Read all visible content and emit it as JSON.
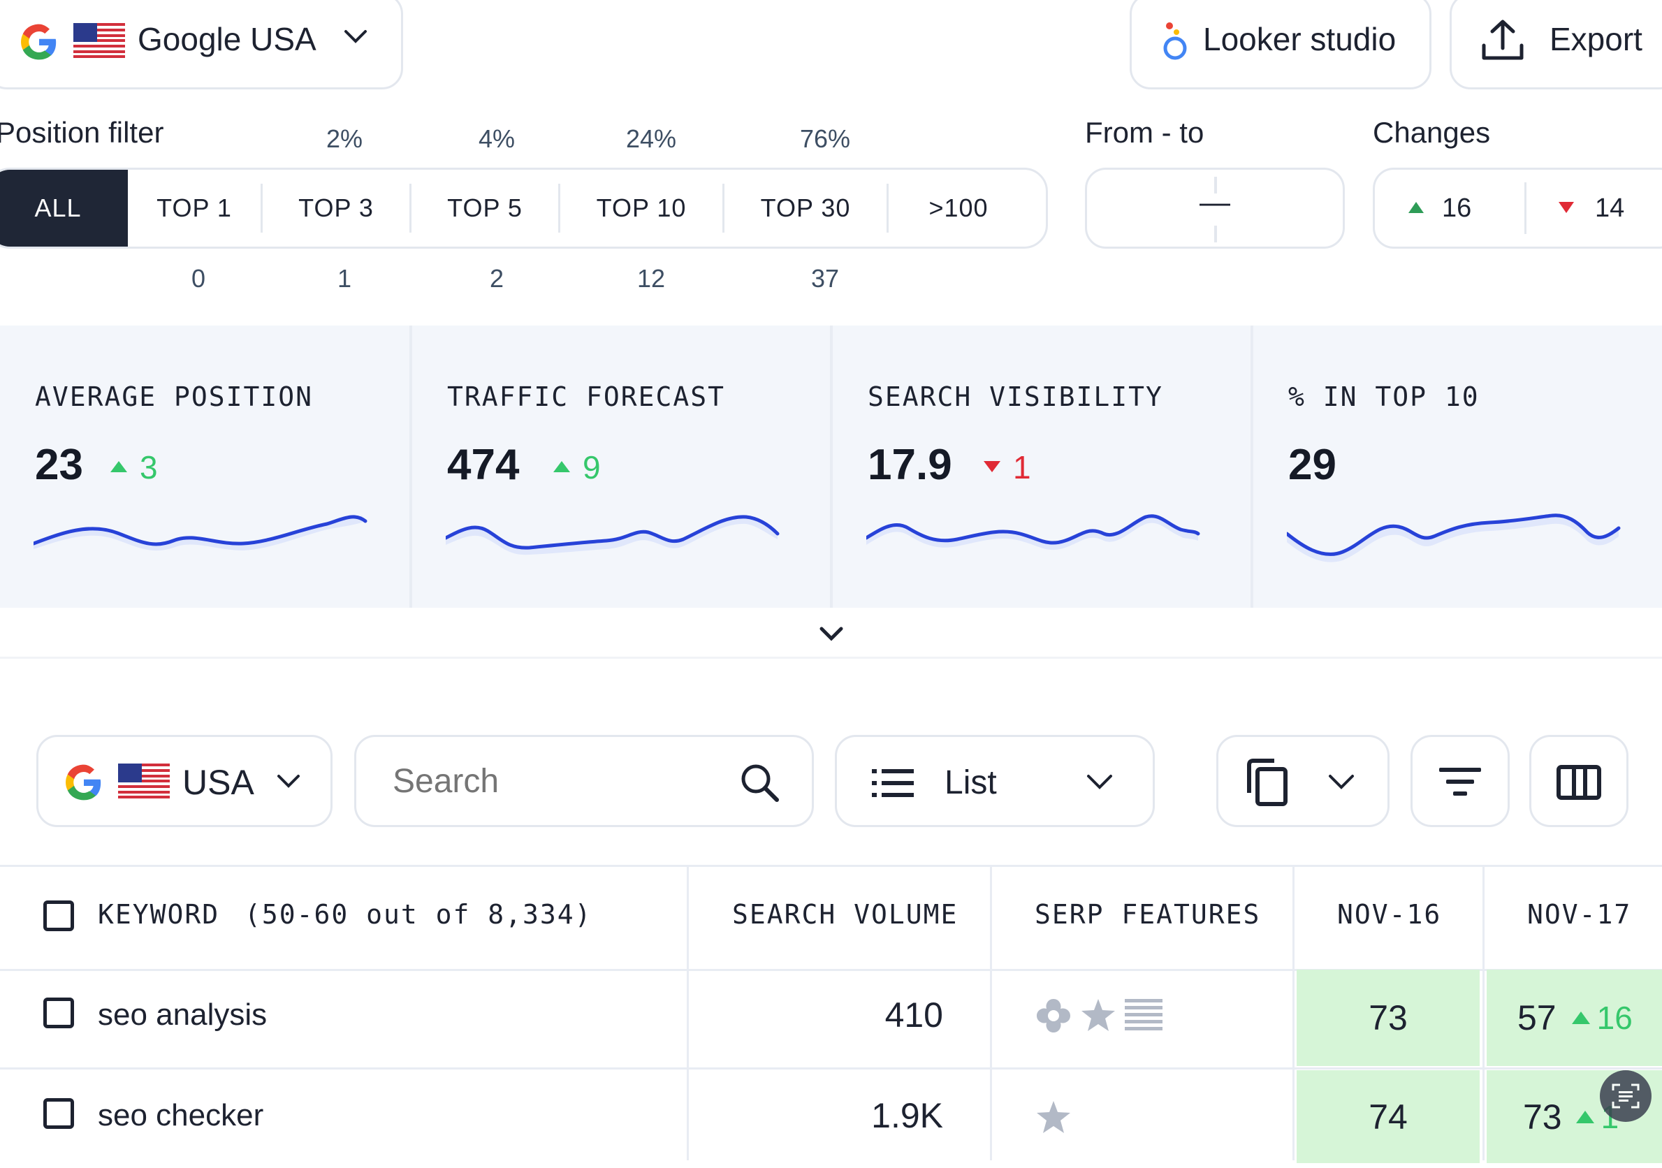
{
  "header": {
    "engine_label": "Google USA",
    "looker_label": "Looker studio",
    "export_label": "Export"
  },
  "position_filter": {
    "title": "Position filter",
    "segments": [
      "ALL",
      "TOP 1",
      "TOP 3",
      "TOP 5",
      "TOP 10",
      "TOP 30",
      ">100"
    ],
    "percents": [
      "2%",
      "4%",
      "24%",
      "76%"
    ],
    "counts": [
      "0",
      "1",
      "2",
      "12",
      "37"
    ],
    "active": "ALL"
  },
  "from_to": {
    "title": "From - to",
    "value": "—"
  },
  "changes": {
    "title": "Changes",
    "up": "16",
    "down": "14"
  },
  "metrics": [
    {
      "label": "AVERAGE POSITION",
      "value": "23",
      "delta": "3",
      "direction": "up"
    },
    {
      "label": "TRAFFIC FORECAST",
      "value": "474",
      "delta": "9",
      "direction": "up"
    },
    {
      "label": "SEARCH VISIBILITY",
      "value": "17.9",
      "delta": "1",
      "direction": "down"
    },
    {
      "label": "% IN TOP 10",
      "value": "29",
      "delta": "",
      "direction": "none"
    }
  ],
  "toolbar": {
    "engine_label": "USA",
    "search_placeholder": "Search",
    "view_label": "List"
  },
  "table": {
    "headers": {
      "keyword": "KEYWORD",
      "range": "(50-60 out of 8,334)",
      "volume": "SEARCH VOLUME",
      "serp": "SERP FEATURES",
      "date1": "NOV-16",
      "date2": "NOV-17"
    },
    "rows": [
      {
        "keyword": "seo analysis",
        "volume": "410",
        "pos1": "73",
        "pos2": "57",
        "change": "16",
        "serp_icons": [
          "local-pack-icon",
          "star-icon",
          "list-icon"
        ]
      },
      {
        "keyword": "seo checker",
        "volume": "1.9K",
        "pos1": "74",
        "pos2": "73",
        "change": "1",
        "serp_icons": [
          "star-icon"
        ]
      }
    ]
  },
  "colors": {
    "active_segment": "#1f2636",
    "up": "#35c76b",
    "down": "#e02a35",
    "sparkline": "#2742d8",
    "position_bg": "#d6f5d7"
  }
}
